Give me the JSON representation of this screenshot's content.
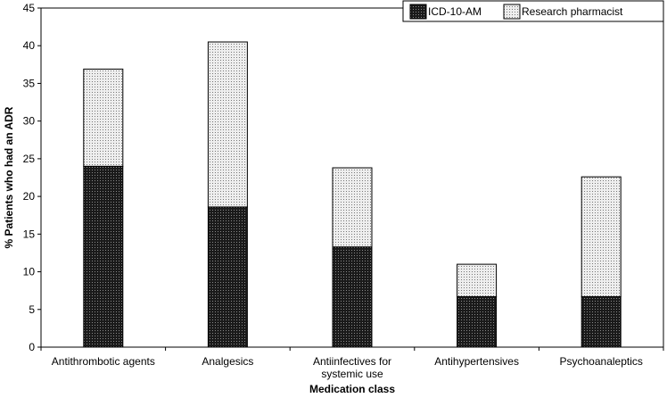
{
  "chart_data": {
    "type": "bar",
    "stacked": true,
    "title": "",
    "xlabel": "Medication class",
    "ylabel": "% Patients who had an ADR",
    "ylim": [
      0,
      45
    ],
    "yticks": [
      0,
      5,
      10,
      15,
      20,
      25,
      30,
      35,
      40,
      45
    ],
    "categories": [
      [
        "Antithrombotic agents"
      ],
      [
        "Analgesics"
      ],
      [
        "Antiinfectives for",
        "systemic use"
      ],
      [
        "Antihypertensives"
      ],
      [
        "Psychoanaleptics"
      ]
    ],
    "series": [
      {
        "name": "ICD-10-AM",
        "values": [
          24.0,
          18.6,
          13.3,
          6.7,
          6.7
        ],
        "pattern": "dark-dots"
      },
      {
        "name": "Research pharmacist",
        "values": [
          12.9,
          21.9,
          10.5,
          4.3,
          15.9
        ],
        "pattern": "light-dots"
      }
    ],
    "legend": "top-right"
  }
}
